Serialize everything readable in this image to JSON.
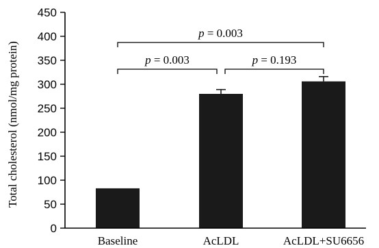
{
  "chart_data": {
    "type": "bar",
    "categories": [
      "Baseline",
      "AcLDL",
      "AcLDL+SU6656"
    ],
    "values": [
      83,
      280,
      306
    ],
    "errors": [
      0,
      9,
      10
    ],
    "ylabel": "Total cholesterol (nmol/mg protein)",
    "xlabel": "",
    "ylim": [
      0,
      450
    ],
    "yticks": [
      0,
      50,
      100,
      150,
      200,
      250,
      300,
      350,
      400,
      450
    ],
    "grid": false,
    "bar_color": "#1a1a1a",
    "annotations": [
      {
        "from": 0,
        "to": 2,
        "level": 1,
        "p_symbol": "p",
        "p_text": " = 0.003"
      },
      {
        "from": 0,
        "to": 1,
        "level": 0,
        "p_symbol": "p",
        "p_text": " = 0.003"
      },
      {
        "from": 1,
        "to": 2,
        "level": 0,
        "p_symbol": "p",
        "p_text": " = 0.193"
      }
    ]
  }
}
